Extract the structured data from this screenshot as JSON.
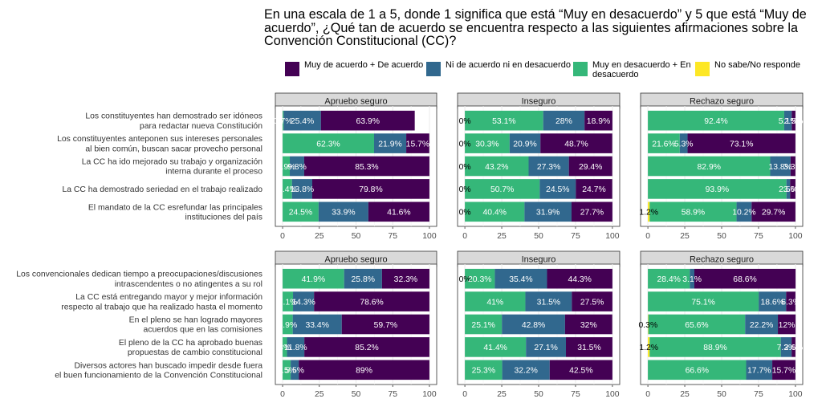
{
  "chart_data": {
    "type": "bar",
    "stacked": true,
    "orientation": "horizontal",
    "title": "En una escala de 1 a 5, donde 1 significa que está “Muy en desacuerdo” y 5 que está “Muy de acuerdo”, ¿Qué tan de acuerdo se encuentra respecto a las siguientes afirmaciones sobre la Convención Constitucional (CC)?",
    "xlim": [
      0,
      100
    ],
    "xticks": [
      "0",
      "25",
      "50",
      "75",
      "100"
    ],
    "legend_position": "top",
    "grid": true,
    "legend": [
      {
        "key": "green",
        "label": "Muy en desacuerdo + En desacuerdo",
        "color": "#35B779"
      },
      {
        "key": "blue",
        "label": "Ni de acuerdo ni en desacuerdo",
        "color": "#31688E"
      },
      {
        "key": "purple",
        "label": "Muy de acuerdo + De acuerdo",
        "color": "#440154"
      },
      {
        "key": "yellow",
        "label": "No sabe/No responde",
        "color": "#FDE725"
      }
    ],
    "legend_order": [
      "purple",
      "blue",
      "green",
      "yellow"
    ],
    "stack_order": [
      "yellow",
      "green",
      "blue",
      "purple"
    ],
    "facets": [
      "Apruebo seguro",
      "Inseguro",
      "Rechazo seguro"
    ],
    "panels": [
      {
        "categories": [
          "Los constituyentes han demostrado ser idóneos\npara redactar nueva Constitución",
          "Los constituyentes anteponen  sus intereses personales\nal bien común, buscan sacar  provecho personal",
          "La CC ha ido mejorado su trabajo y organización\ninterna durante el proceso",
          "La CC ha demostrado seriedad en el trabajo realizado",
          "El mandato de la CC esrefundar las principales\ninstituciones del país"
        ],
        "values": [
          [
            {
              "yellow": 0,
              "green": 0.7,
              "blue": 25.4,
              "purple": 63.9
            },
            {
              "yellow": 0,
              "green": 62.3,
              "blue": 21.9,
              "purple": 15.7
            },
            {
              "yellow": 0,
              "green": 4.9,
              "blue": 9.8,
              "purple": 85.3
            },
            {
              "yellow": 0,
              "green": 6.4,
              "blue": 13.8,
              "purple": 79.8
            },
            {
              "yellow": 0,
              "green": 24.5,
              "blue": 33.9,
              "purple": 41.6
            }
          ],
          [
            {
              "yellow": 0,
              "green": 53.1,
              "blue": 28,
              "purple": 18.9
            },
            {
              "yellow": 0,
              "green": 30.3,
              "blue": 20.9,
              "purple": 48.7
            },
            {
              "yellow": 0,
              "green": 43.2,
              "blue": 27.3,
              "purple": 29.4
            },
            {
              "yellow": 0,
              "green": 50.7,
              "blue": 24.5,
              "purple": 24.7
            },
            {
              "yellow": 0,
              "green": 40.4,
              "blue": 31.9,
              "purple": 27.7
            }
          ],
          [
            {
              "yellow": 0,
              "green": 92.4,
              "blue": 5.1,
              "purple": 2.5
            },
            {
              "yellow": 0,
              "green": 21.6,
              "blue": 5.3,
              "purple": 73.1
            },
            {
              "yellow": 0,
              "green": 82.9,
              "blue": 13.8,
              "purple": 3.3
            },
            {
              "yellow": 0,
              "green": 93.9,
              "blue": 2.5,
              "purple": 3.6
            },
            {
              "yellow": 1.2,
              "green": 58.9,
              "blue": 10.2,
              "purple": 29.7
            }
          ]
        ],
        "labels": [
          [
            {
              "green": "0.7%",
              "blue": "25.4%",
              "purple": "63.9%"
            },
            {
              "green": "62.3%",
              "blue": "21.9%",
              "purple": "15.7%"
            },
            {
              "green": "4.9%",
              "blue": "9.8%",
              "purple": "85.3%"
            },
            {
              "green": "6.4%",
              "blue": "13.8%",
              "purple": "79.8%"
            },
            {
              "green": "24.5%",
              "blue": "33.9%",
              "purple": "41.6%"
            }
          ],
          [
            {
              "yellow": "0%",
              "green": "53.1%",
              "blue": "28%",
              "purple": "18.9%"
            },
            {
              "yellow": "0%",
              "green": "30.3%",
              "blue": "20.9%",
              "purple": "48.7%"
            },
            {
              "yellow": "0%",
              "green": "43.2%",
              "blue": "27.3%",
              "purple": "29.4%"
            },
            {
              "yellow": "0%",
              "green": "50.7%",
              "blue": "24.5%",
              "purple": "24.7%"
            },
            {
              "yellow": "0%",
              "green": "40.4%",
              "blue": "31.9%",
              "purple": "27.7%"
            }
          ],
          [
            {
              "green": "92.4%",
              "blue": "5.1%",
              "purple": "2.5%"
            },
            {
              "green": "21.6%",
              "blue": "5.3%",
              "purple": "73.1%"
            },
            {
              "green": "82.9%",
              "blue": "13.8%",
              "purple": "3.3%"
            },
            {
              "green": "93.9%",
              "blue": "2.5%",
              "purple": "3.6%"
            },
            {
              "yellow": "1.2%",
              "green": "58.9%",
              "blue": "10.2%",
              "purple": "29.7%"
            }
          ]
        ]
      },
      {
        "categories": [
          "Los convencionales dedican tiempo a preocupaciones/discusiones\nintrascendentes o no atingentes a su rol",
          "La CC está entregando mayor y mejor información\nrespecto al trabajo que ha realizado hasta el momento",
          "En el pleno se han logrado mayores\nacuerdos que en las comisiones",
          "El pleno de la CC ha aprobado buenas\npropuestas de cambio constitucional",
          "Diversos actores han buscado impedir desde fuera\nel buen funcionamiento de la Convención Constitucional"
        ],
        "values": [
          [
            {
              "yellow": 0,
              "green": 41.9,
              "blue": 25.8,
              "purple": 32.3
            },
            {
              "yellow": 0,
              "green": 7.1,
              "blue": 14.3,
              "purple": 78.6
            },
            {
              "yellow": 0,
              "green": 6.9,
              "blue": 33.4,
              "purple": 59.7
            },
            {
              "yellow": 0,
              "green": 3,
              "blue": 11.8,
              "purple": 85.2
            },
            {
              "yellow": 0,
              "green": 5.5,
              "blue": 5.5,
              "purple": 89
            }
          ],
          [
            {
              "yellow": 0,
              "green": 20.3,
              "blue": 35.4,
              "purple": 44.3
            },
            {
              "yellow": 0,
              "green": 41,
              "blue": 31.5,
              "purple": 27.5
            },
            {
              "yellow": 0,
              "green": 25.1,
              "blue": 42.8,
              "purple": 32
            },
            {
              "yellow": 0,
              "green": 41.4,
              "blue": 27.1,
              "purple": 31.5
            },
            {
              "yellow": 0,
              "green": 25.3,
              "blue": 32.2,
              "purple": 42.5
            }
          ],
          [
            {
              "yellow": 0,
              "green": 28.4,
              "blue": 3.1,
              "purple": 68.6
            },
            {
              "yellow": 0,
              "green": 75.1,
              "blue": 18.6,
              "purple": 6.3
            },
            {
              "yellow": 0.3,
              "green": 65.6,
              "blue": 22.2,
              "purple": 12
            },
            {
              "yellow": 1.2,
              "green": 88.9,
              "blue": 7.3,
              "purple": 2.6
            },
            {
              "yellow": 0,
              "green": 66.6,
              "blue": 17.7,
              "purple": 15.7
            }
          ]
        ],
        "labels": [
          [
            {
              "green": "41.9%",
              "blue": "25.8%",
              "purple": "32.3%"
            },
            {
              "green": "7.1%",
              "blue": "14.3%",
              "purple": "78.6%"
            },
            {
              "green": "6.9%",
              "blue": "33.4%",
              "purple": "59.7%"
            },
            {
              "green": "3%",
              "blue": "11.8%",
              "purple": "85.2%"
            },
            {
              "green": "5.5%",
              "blue": "5.5%",
              "purple": "89%"
            }
          ],
          [
            {
              "yellow": "0%",
              "green": "20.3%",
              "blue": "35.4%",
              "purple": "44.3%"
            },
            {
              "green": "41%",
              "blue": "31.5%",
              "purple": "27.5%"
            },
            {
              "green": "25.1%",
              "blue": "42.8%",
              "purple": "32%"
            },
            {
              "green": "41.4%",
              "blue": "27.1%",
              "purple": "31.5%"
            },
            {
              "green": "25.3%",
              "blue": "32.2%",
              "purple": "42.5%"
            }
          ],
          [
            {
              "green": "28.4%",
              "blue": "3.1%",
              "purple": "68.6%"
            },
            {
              "green": "75.1%",
              "blue": "18.6%",
              "purple": "6.3%"
            },
            {
              "yellow": "0.3%",
              "green": "65.6%",
              "blue": "22.2%",
              "purple": "12%"
            },
            {
              "yellow": "1.2%",
              "green": "88.9%",
              "blue": "7.3%",
              "purple": "2.6%"
            },
            {
              "green": "66.6%",
              "blue": "17.7%",
              "purple": "15.7%"
            }
          ]
        ]
      }
    ]
  }
}
